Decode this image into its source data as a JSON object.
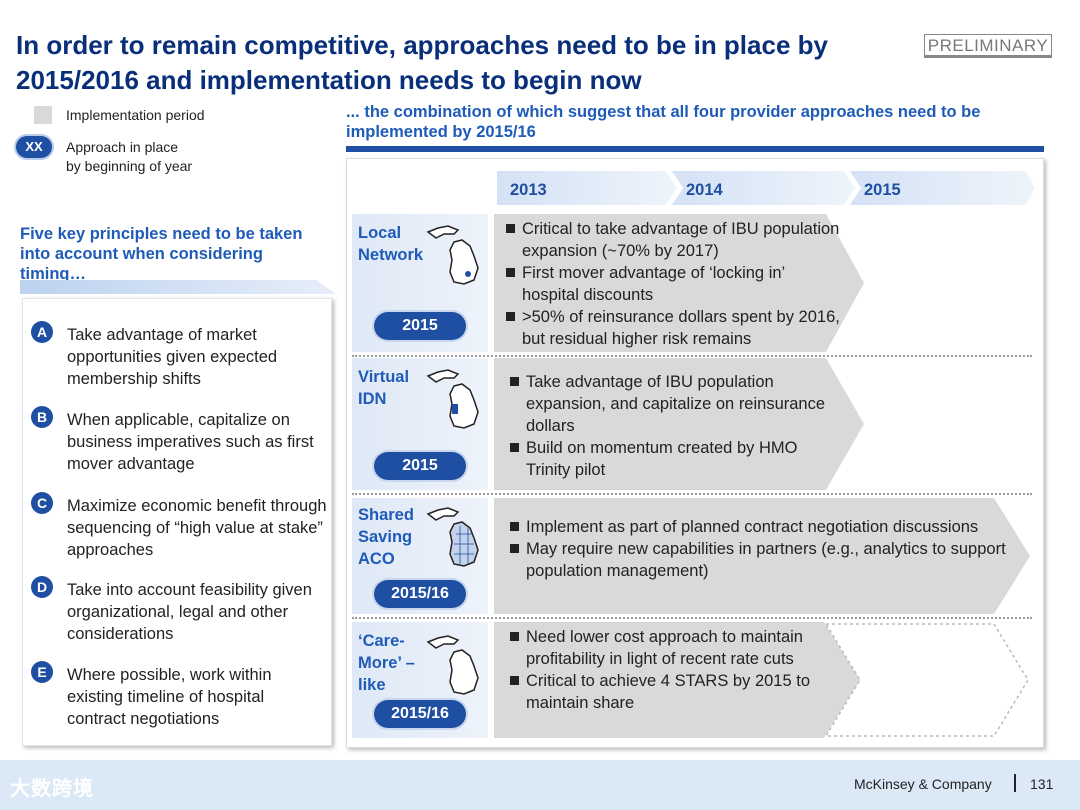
{
  "title": "In order to remain competitive, approaches need to be in place by 2015/2016 and implementation needs to begin now",
  "stamp": "PRELIMINARY",
  "legend": {
    "implementation_label": "Implementation period",
    "xx_badge": "XX",
    "approach_label_1": "Approach in place",
    "approach_label_2": "by beginning of year"
  },
  "principles": {
    "heading": "Five key  principles need to be taken into account when considering timing…",
    "items": [
      {
        "letter": "A",
        "text": "Take advantage of market opportunities given expected membership shifts"
      },
      {
        "letter": "B",
        "text": "When applicable, capitalize on business imperatives such as first mover advantage"
      },
      {
        "letter": "C",
        "text": "Maximize economic benefit through sequencing of “high value at stake” approaches"
      },
      {
        "letter": "D",
        "text": "Take into account  feasibility given organizational, legal and other considerations"
      },
      {
        "letter": "E",
        "text": "Where possible, work within existing timeline of hospital contract negotiations"
      }
    ]
  },
  "right_heading": "... the combination of which suggest that all four provider approaches need to be implemented by 2015/16",
  "years": [
    "2013",
    "2014",
    "2015"
  ],
  "approaches": [
    {
      "name_1": "Local",
      "name_2": "Network",
      "name_3": "",
      "year": "2015",
      "bullets": [
        "Critical to take advantage of  IBU population expansion (~70% by 2017)",
        "First mover advantage of ‘locking in’ hospital discounts",
        ">50% of reinsurance dollars spent by 2016, but residual  higher risk remains"
      ]
    },
    {
      "name_1": "Virtual",
      "name_2": "IDN",
      "name_3": "",
      "year": "2015",
      "bullets": [
        "Take advantage of IBU population expansion, and capitalize on reinsurance dollars",
        "Build on momentum created by HMO Trinity pilot"
      ]
    },
    {
      "name_1": "Shared",
      "name_2": "Saving",
      "name_3": "ACO",
      "year": "2015/16",
      "bullets": [
        "Implement as part of planned contract negotiation discussions",
        "May require new capabilities in partners (e.g., analytics to support population management)"
      ]
    },
    {
      "name_1": "‘Care-",
      "name_2": "More’ –",
      "name_3": "like",
      "year": "2015/16",
      "bullets": [
        "Need lower cost approach to maintain profitability in light of recent rate cuts",
        "Critical to achieve 4 STARS by 2015 to maintain share"
      ]
    }
  ],
  "footer": {
    "company": "McKinsey & Company",
    "page": "131",
    "watermark": "大数跨境"
  },
  "colors": {
    "title": "#0a2f7a",
    "accent": "#1f4fa3",
    "heading": "#1f5bb8",
    "chevron": "#d9d9d9"
  }
}
